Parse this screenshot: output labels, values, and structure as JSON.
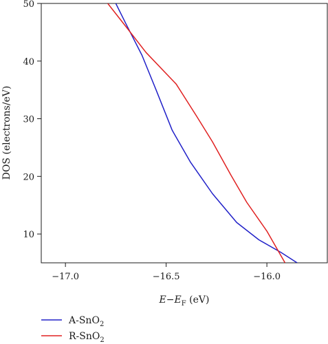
{
  "chart_data": {
    "type": "line",
    "xlabel": {
      "main": "E",
      "sep": "−",
      "var": "E",
      "sub": "F",
      "unit": " (eV)"
    },
    "ylabel": "DOS (electrons/eV)",
    "xlim": [
      -17.12,
      -15.7
    ],
    "ylim": [
      5,
      50
    ],
    "x_ticks": [
      -17.0,
      -16.5,
      -16.0
    ],
    "x_tick_labels": [
      "−17.0",
      "−16.5",
      "−16.0"
    ],
    "y_ticks": [
      10,
      20,
      30,
      40,
      50
    ],
    "y_tick_labels": [
      "10",
      "20",
      "30",
      "40",
      "50"
    ],
    "grid": false,
    "legend_position": "bottom-left, below plot",
    "series": [
      {
        "name": "A-SnO2",
        "label_main": "A-SnO",
        "label_sub": "2",
        "color": "#2020c8",
        "x": [
          -16.75,
          -16.7,
          -16.62,
          -16.55,
          -16.47,
          -16.38,
          -16.27,
          -16.15,
          -16.04,
          -15.93,
          -15.85
        ],
        "y": [
          50,
          46.5,
          41,
          35,
          28,
          22.5,
          17,
          12,
          9,
          6.8,
          5
        ]
      },
      {
        "name": "R-SnO2",
        "label_main": "R-SnO",
        "label_sub": "2",
        "color": "#e02020",
        "x": [
          -16.79,
          -16.7,
          -16.6,
          -16.45,
          -16.35,
          -16.27,
          -16.18,
          -16.1,
          -16.0,
          -15.91
        ],
        "y": [
          50,
          46,
          41.5,
          36,
          30.5,
          26,
          20.3,
          15.5,
          10.5,
          5
        ]
      }
    ]
  }
}
